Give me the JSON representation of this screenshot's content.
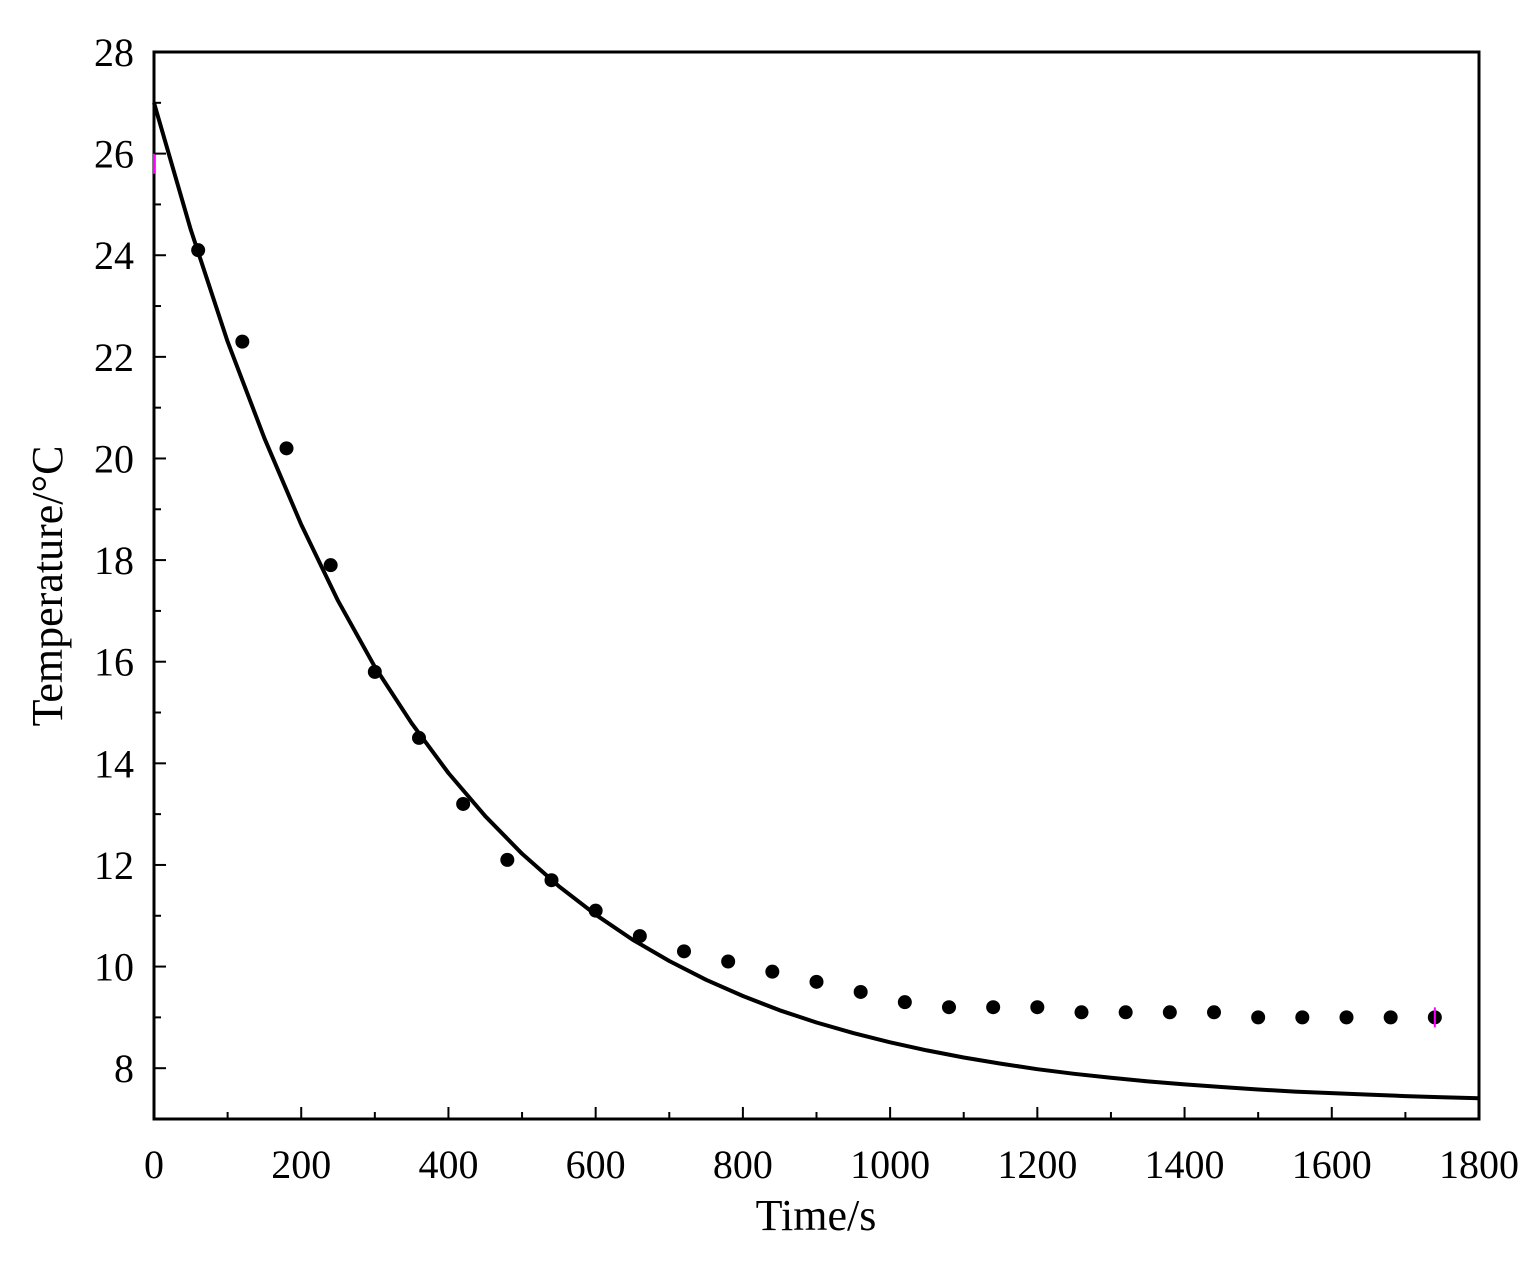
{
  "chart_data": {
    "type": "scatter",
    "title": "",
    "xlabel": "Time/s",
    "ylabel": "Temperature/°C",
    "xlim": [
      0,
      1800
    ],
    "ylim": [
      7,
      28
    ],
    "x_ticks": [
      "0",
      "200",
      "400",
      "600",
      "800",
      "1000",
      "1200",
      "1400",
      "1600",
      "1800"
    ],
    "y_ticks": [
      "8",
      "10",
      "12",
      "14",
      "16",
      "18",
      "20",
      "22",
      "24",
      "26",
      "28"
    ],
    "grid": false,
    "legend": "none",
    "series": [
      {
        "kind": "points",
        "color": "#000000",
        "points": [
          {
            "x": 60,
            "y": 24.1
          },
          {
            "x": 120,
            "y": 22.3
          },
          {
            "x": 180,
            "y": 20.2
          },
          {
            "x": 240,
            "y": 17.9
          },
          {
            "x": 300,
            "y": 15.8
          },
          {
            "x": 360,
            "y": 14.5
          },
          {
            "x": 420,
            "y": 13.2
          },
          {
            "x": 480,
            "y": 12.1
          },
          {
            "x": 540,
            "y": 11.7
          },
          {
            "x": 600,
            "y": 11.1
          },
          {
            "x": 660,
            "y": 10.6
          },
          {
            "x": 720,
            "y": 10.3
          },
          {
            "x": 780,
            "y": 10.1
          },
          {
            "x": 840,
            "y": 9.9
          },
          {
            "x": 900,
            "y": 9.7
          },
          {
            "x": 960,
            "y": 9.5
          },
          {
            "x": 1020,
            "y": 9.3
          },
          {
            "x": 1080,
            "y": 9.2
          },
          {
            "x": 1140,
            "y": 9.2
          },
          {
            "x": 1200,
            "y": 9.2
          },
          {
            "x": 1260,
            "y": 9.1
          },
          {
            "x": 1320,
            "y": 9.1
          },
          {
            "x": 1380,
            "y": 9.1
          },
          {
            "x": 1440,
            "y": 9.1
          },
          {
            "x": 1500,
            "y": 9.0
          },
          {
            "x": 1560,
            "y": 9.0
          },
          {
            "x": 1620,
            "y": 9.0
          },
          {
            "x": 1680,
            "y": 9.0
          },
          {
            "x": 1740,
            "y": 9.0
          }
        ]
      },
      {
        "kind": "fit-curve",
        "color": "#000000",
        "x": [
          0,
          50,
          100,
          150,
          200,
          250,
          300,
          350,
          400,
          450,
          500,
          550,
          600,
          650,
          700,
          750,
          800,
          850,
          900,
          950,
          1000,
          1050,
          1100,
          1150,
          1200,
          1250,
          1300,
          1350,
          1400,
          1450,
          1500,
          1550,
          1600,
          1650,
          1700,
          1750,
          1800
        ],
        "y": [
          27.0,
          24.5,
          22.3,
          20.4,
          18.7,
          17.2,
          15.9,
          14.79,
          13.81,
          12.96,
          12.22,
          11.58,
          11.02,
          10.53,
          10.11,
          9.74,
          9.42,
          9.14,
          8.9,
          8.69,
          8.51,
          8.35,
          8.21,
          8.09,
          7.98,
          7.89,
          7.81,
          7.74,
          7.68,
          7.63,
          7.58,
          7.54,
          7.51,
          7.48,
          7.45,
          7.43,
          7.41
        ]
      },
      {
        "kind": "markers",
        "color": "#ff00ff",
        "points": [
          {
            "x": 0,
            "y": 25.8
          },
          {
            "x": 1740,
            "y": 9.0
          }
        ]
      }
    ]
  }
}
